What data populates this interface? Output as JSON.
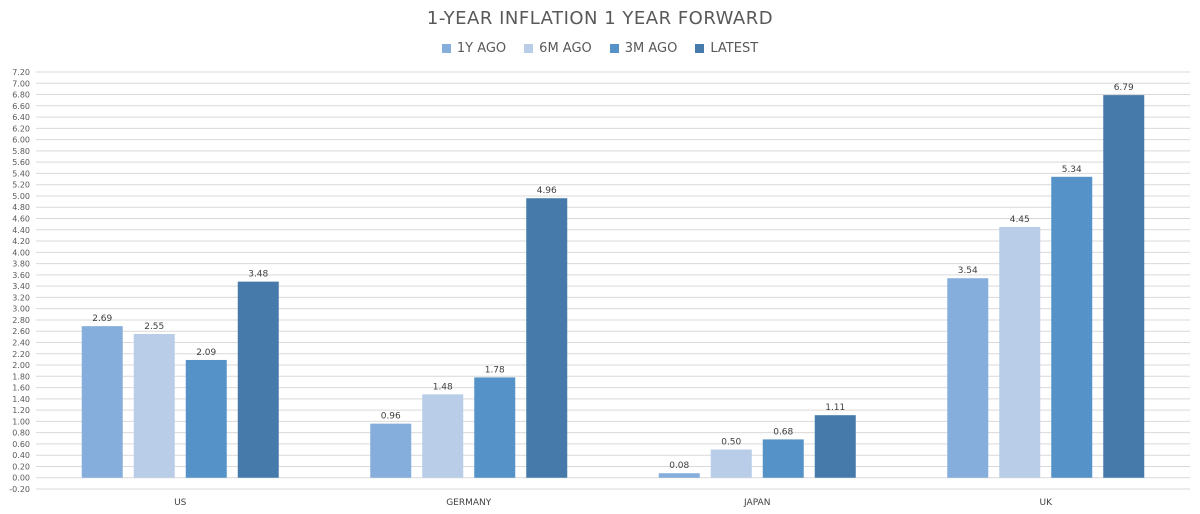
{
  "chart_data": {
    "type": "bar",
    "title": "1-YEAR INFLATION 1 YEAR FORWARD",
    "categories": [
      "US",
      "GERMANY",
      "JAPAN",
      "UK"
    ],
    "series": [
      {
        "name": "1Y AGO",
        "color": "#85aedc",
        "values": [
          2.69,
          0.96,
          0.08,
          3.54
        ]
      },
      {
        "name": "6M AGO",
        "color": "#b9cde8",
        "values": [
          2.55,
          1.48,
          0.5,
          4.45
        ]
      },
      {
        "name": "3M AGO",
        "color": "#5592c8",
        "values": [
          2.09,
          1.78,
          0.68,
          5.34
        ]
      },
      {
        "name": "LATEST",
        "color": "#467aaa",
        "values": [
          3.48,
          4.96,
          1.11,
          6.79
        ]
      }
    ],
    "ylim": [
      -0.2,
      7.2
    ],
    "ytick_step": 0.2,
    "grid": true,
    "legend_position": "top-center",
    "xlabel": "",
    "ylabel": ""
  }
}
